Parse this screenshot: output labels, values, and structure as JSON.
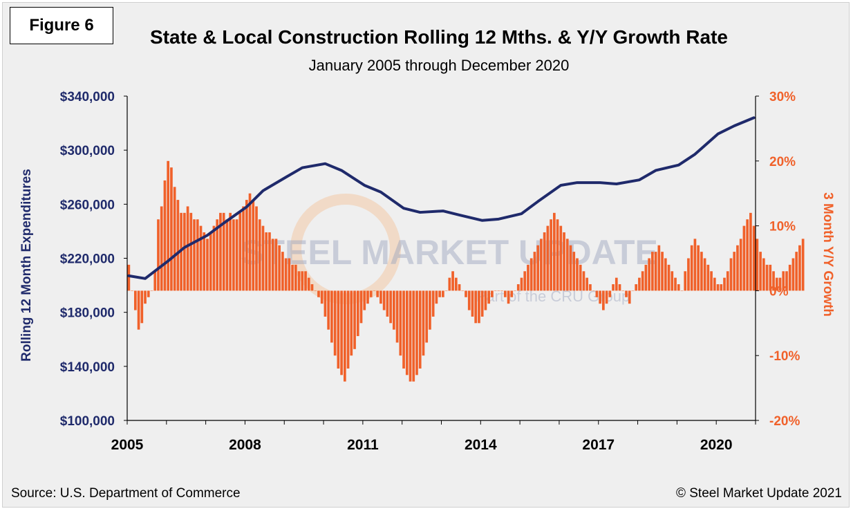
{
  "figure_label": "Figure 6",
  "source": "Source: U.S. Department of Commerce",
  "copyright": "© Steel Market Update 2021",
  "watermark": {
    "main": "STEEL MARKET UPDATE",
    "sub": "Part of the CRU Group"
  },
  "colors": {
    "line": "#1f2a6b",
    "bars": "#f0612a",
    "axis_left": "#1f2a6b",
    "axis_right": "#f0612a",
    "background": "#efefef"
  },
  "chart_data": {
    "type": "bar+line",
    "title": "State & Local Construction Rolling 12 Mths. & Y/Y Growth Rate",
    "subtitle": "January 2005 through December 2020",
    "ylabel_left": "Rolling 12 Month Expenditures",
    "ylabel_right": "3 Month Y/Y Growth",
    "ylim_left": [
      100000,
      340000
    ],
    "ylim_right": [
      -20,
      30
    ],
    "yticks_left": [
      "$100,000",
      "$140,000",
      "$180,000",
      "$220,000",
      "$260,000",
      "$300,000",
      "$340,000"
    ],
    "yticks_right": [
      "-20%",
      "-10%",
      "0%",
      "10%",
      "20%",
      "30%"
    ],
    "xticks": [
      "2005",
      "2008",
      "2011",
      "2014",
      "2017",
      "2020"
    ],
    "x_start": "2005-01",
    "x_end": "2020-12",
    "grid": false,
    "legend": "none",
    "series": [
      {
        "name": "Rolling 12 Month Expenditures",
        "kind": "line",
        "axis": "left",
        "x": [
          "2005-01",
          "2005-06",
          "2006-01",
          "2006-06",
          "2007-01",
          "2007-06",
          "2008-01",
          "2008-06",
          "2009-01",
          "2009-06",
          "2010-01",
          "2010-06",
          "2011-01",
          "2011-06",
          "2012-01",
          "2012-06",
          "2013-01",
          "2013-06",
          "2014-01",
          "2014-06",
          "2015-01",
          "2015-06",
          "2016-01",
          "2016-06",
          "2017-01",
          "2017-06",
          "2018-01",
          "2018-06",
          "2019-01",
          "2019-06",
          "2020-01",
          "2020-06",
          "2020-12"
        ],
        "values": [
          207000,
          205000,
          218000,
          228000,
          237000,
          246000,
          258000,
          270000,
          280000,
          287000,
          290000,
          285000,
          274000,
          269000,
          257000,
          254000,
          255000,
          252000,
          248000,
          249000,
          253000,
          262000,
          274000,
          276000,
          276000,
          275000,
          278000,
          285000,
          289000,
          297000,
          312000,
          318000,
          324000
        ]
      },
      {
        "name": "3 Month Y/Y Growth",
        "kind": "bar",
        "axis": "right",
        "x_start": "2005-01",
        "frequency": "monthly",
        "values": [
          4,
          0,
          -3,
          -6,
          -5,
          -2,
          -1,
          0,
          3,
          11,
          13,
          17,
          20,
          19,
          16,
          14,
          12,
          12,
          13,
          12,
          11,
          11,
          10,
          9,
          8,
          9,
          10,
          11,
          12,
          12,
          11,
          12,
          11,
          11,
          12,
          13,
          14,
          15,
          14,
          13,
          11,
          10,
          9,
          9,
          8,
          8,
          7,
          6,
          5,
          5,
          4,
          4,
          3,
          3,
          3,
          2,
          1,
          0,
          -1,
          -2,
          -4,
          -6,
          -8,
          -10,
          -12,
          -13,
          -14,
          -12,
          -10,
          -9,
          -7,
          -5,
          -3,
          -2,
          -1,
          0,
          -1,
          -2,
          -3,
          -4,
          -5,
          -6,
          -8,
          -10,
          -12,
          -13,
          -14,
          -14,
          -13,
          -12,
          -10,
          -8,
          -6,
          -4,
          -2,
          -1,
          -1,
          0,
          2,
          3,
          2,
          1,
          0,
          -1,
          -3,
          -4,
          -5,
          -5,
          -4,
          -3,
          -2,
          -1,
          0,
          0,
          0,
          -1,
          -2,
          -1,
          0,
          1,
          2,
          3,
          4,
          5,
          6,
          7,
          8,
          9,
          10,
          11,
          12,
          11,
          10,
          9,
          8,
          7,
          6,
          5,
          4,
          3,
          2,
          1,
          0,
          -1,
          -2,
          -3,
          -2,
          -1,
          1,
          2,
          1,
          0,
          -1,
          -2,
          0,
          1,
          2,
          3,
          4,
          5,
          6,
          6,
          7,
          6,
          5,
          4,
          3,
          2,
          1,
          0,
          3,
          5,
          7,
          8,
          7,
          6,
          5,
          4,
          3,
          2,
          1,
          1,
          2,
          3,
          5,
          6,
          7,
          8,
          10,
          11,
          12,
          10,
          8,
          6,
          5,
          4,
          4,
          3,
          2,
          2,
          3,
          3,
          4,
          5,
          6,
          7,
          8
        ]
      }
    ]
  }
}
